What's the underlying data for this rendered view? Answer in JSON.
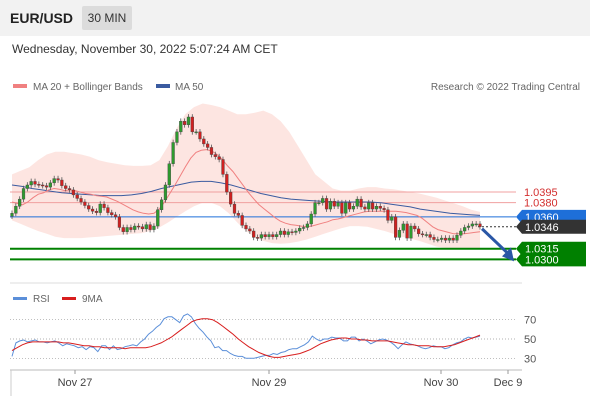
{
  "header": {
    "pair": "EUR/USD",
    "timeframe": "30 MIN"
  },
  "datetime": "Wednesday, November 30, 2022 5:07:24 AM CET",
  "legend": {
    "ma20": "MA 20 + Bollinger Bands",
    "ma50": "MA 50",
    "credit": "Research © 2022 Trading Central"
  },
  "colors": {
    "ma20": "#f08080",
    "ma50": "#3a5ba0",
    "band": "#fde0dc",
    "resistance": "#d32f2f",
    "support": "#008000",
    "current": "#1e6fd9",
    "arrow": "#2a57a6",
    "rsi": "#5b8fd9",
    "rsi_ma": "#d81e1e"
  },
  "chart_data": [
    {
      "type": "candlestick",
      "ylim": [
        1.0268,
        1.0525
      ],
      "x_ticks": [
        "Nov 27",
        "Nov 29",
        "Nov 30",
        "Dec 9"
      ],
      "levels": [
        {
          "value": 1.0395,
          "label": "1.0395",
          "kind": "resistance"
        },
        {
          "value": 1.038,
          "label": "1.0380",
          "kind": "resistance"
        },
        {
          "value": 1.036,
          "label": "1.0360",
          "kind": "current"
        },
        {
          "value": 1.0346,
          "label": "1.0346",
          "kind": "last"
        },
        {
          "value": 1.0315,
          "label": "1.0315",
          "kind": "support"
        },
        {
          "value": 1.03,
          "label": "1.0300",
          "kind": "support"
        }
      ],
      "close": [
        1.0365,
        1.0375,
        1.0385,
        1.04,
        1.0405,
        1.041,
        1.0406,
        1.0405,
        1.0404,
        1.0402,
        1.0408,
        1.0414,
        1.0412,
        1.0404,
        1.04,
        1.0398,
        1.0391,
        1.0386,
        1.0381,
        1.0376,
        1.0371,
        1.0368,
        1.0366,
        1.0378,
        1.0373,
        1.0366,
        1.0363,
        1.036,
        1.0345,
        1.0339,
        1.0345,
        1.0342,
        1.0347,
        1.0346,
        1.0343,
        1.0349,
        1.0342,
        1.0347,
        1.037,
        1.0384,
        1.0405,
        1.0435,
        1.0465,
        1.048,
        1.0495,
        1.049,
        1.0501,
        1.048,
        1.048,
        1.047,
        1.0463,
        1.0458,
        1.0448,
        1.0445,
        1.0441,
        1.042,
        1.0395,
        1.0378,
        1.0365,
        1.0362,
        1.0348,
        1.0343,
        1.034,
        1.0331,
        1.033,
        1.0335,
        1.0332,
        1.0335,
        1.0332,
        1.0335,
        1.034,
        1.0335,
        1.0339,
        1.0338,
        1.034,
        1.0344,
        1.0345,
        1.035,
        1.0364,
        1.038,
        1.038,
        1.0386,
        1.0371,
        1.0382,
        1.0375,
        1.038,
        1.0365,
        1.038,
        1.0371,
        1.0375,
        1.0385,
        1.0374,
        1.0371,
        1.038,
        1.0371,
        1.0375,
        1.0372,
        1.037,
        1.0355,
        1.036,
        1.0331,
        1.0341,
        1.035,
        1.033,
        1.0347,
        1.0343,
        1.0336,
        1.0335,
        1.0335,
        1.0331,
        1.0328,
        1.0328,
        1.033,
        1.0327,
        1.033,
        1.0327,
        1.0334,
        1.034,
        1.0345,
        1.0347,
        1.035,
        1.035,
        1.0346
      ],
      "ma20": [
        1.0381,
        1.0379,
        1.0377,
        1.0381,
        1.0387,
        1.0392,
        1.0394,
        1.0398,
        1.04,
        1.0399,
        1.0397,
        1.0398,
        1.0397,
        1.0395,
        1.0393,
        1.0392,
        1.039,
        1.0389,
        1.0388,
        1.0385,
        1.0382,
        1.0378,
        1.0374,
        1.037,
        1.0367,
        1.0365,
        1.0364,
        1.0365,
        1.0371,
        1.0381,
        1.0393,
        1.0405,
        1.0418,
        1.0431,
        1.0443,
        1.0451,
        1.0454,
        1.0455,
        1.0453,
        1.0448,
        1.0441,
        1.0432,
        1.0424,
        1.0414,
        1.0404,
        1.0394,
        1.0385,
        1.0377,
        1.0371,
        1.0365,
        1.0359,
        1.0354,
        1.0351,
        1.0349,
        1.0348,
        1.0347,
        1.0346,
        1.0347,
        1.0349,
        1.0351,
        1.0353,
        1.0356,
        1.0357,
        1.0359,
        1.0361,
        1.0363,
        1.0365,
        1.0367,
        1.0368,
        1.0368,
        1.0368,
        1.0368,
        1.0368,
        1.0368,
        1.0367,
        1.0366,
        1.0364,
        1.0362,
        1.0358,
        1.0352,
        1.0346,
        1.0342,
        1.034,
        1.0338,
        1.0336,
        1.0336,
        1.0336,
        1.0337,
        1.0338,
        1.0339
      ],
      "ma50": [
        1.0405,
        1.0403,
        1.04,
        1.0398,
        1.0396,
        1.0394,
        1.0393,
        1.0392,
        1.0391,
        1.039,
        1.039,
        1.039,
        1.0391,
        1.0393,
        1.0396,
        1.04,
        1.0403,
        1.0406,
        1.0409,
        1.041,
        1.041,
        1.0408,
        1.0405,
        1.0401,
        1.0397,
        1.0393,
        1.039,
        1.0387,
        1.0385,
        1.0384,
        1.0383,
        1.0382,
        1.0381,
        1.0381,
        1.0381,
        1.0381,
        1.0381,
        1.038,
        1.0378,
        1.0376,
        1.0374,
        1.0371,
        1.0369,
        1.0367,
        1.0365,
        1.0364,
        1.0363,
        1.0362
      ],
      "bb_upper": [
        1.042,
        1.0425,
        1.043,
        1.044,
        1.0448,
        1.0452,
        1.0452,
        1.045,
        1.0448,
        1.0445,
        1.044,
        1.0437,
        1.0435,
        1.0433,
        1.0432,
        1.0432,
        1.0433,
        1.044,
        1.046,
        1.0485,
        1.0505,
        1.0515,
        1.052,
        1.0518,
        1.0515,
        1.051,
        1.0505,
        1.0505,
        1.0507,
        1.051,
        1.0505,
        1.0495,
        1.048,
        1.046,
        1.044,
        1.042,
        1.041,
        1.04,
        1.0397,
        1.0397,
        1.04,
        1.0402,
        1.0402,
        1.04,
        1.0399,
        1.0397,
        1.0395,
        1.0393,
        1.039,
        1.0387,
        1.0383,
        1.0379,
        1.0375,
        1.037,
        1.0367
      ],
      "bb_lower": [
        1.0355,
        1.035,
        1.0345,
        1.034,
        1.0336,
        1.0332,
        1.033,
        1.033,
        1.033,
        1.0331,
        1.0332,
        1.0333,
        1.0334,
        1.0335,
        1.0336,
        1.0337,
        1.034,
        1.0345,
        1.0352,
        1.036,
        1.0368,
        1.0375,
        1.038,
        1.038,
        1.0375,
        1.0365,
        1.0352,
        1.034,
        1.0331,
        1.0326,
        1.0323,
        1.0322,
        1.0323,
        1.0325,
        1.0328,
        1.0332,
        1.0336,
        1.034,
        1.0344,
        1.0347,
        1.0347,
        1.0346,
        1.0343,
        1.034,
        1.0336,
        1.0332,
        1.0329,
        1.0326,
        1.0322,
        1.0318,
        1.0316,
        1.0315,
        1.0314,
        1.0314,
        1.0315
      ]
    },
    {
      "type": "line",
      "legend": [
        "RSI",
        "9MA"
      ],
      "ylim": [
        20,
        80
      ],
      "y_ticks": [
        70,
        50,
        30
      ],
      "series": [
        {
          "name": "RSI",
          "values": [
            32,
            46,
            48,
            49,
            47,
            48,
            49,
            47,
            47,
            46,
            47,
            48,
            46,
            43,
            45,
            44,
            43,
            41,
            42,
            39,
            42,
            41,
            37,
            43,
            43,
            39,
            43,
            39,
            40,
            42,
            43,
            44,
            43,
            47,
            50,
            55,
            58,
            62,
            65,
            71,
            73,
            73,
            70,
            67,
            74,
            76,
            73,
            66,
            61,
            57,
            52,
            48,
            41,
            42,
            38,
            38,
            35,
            33,
            32,
            32,
            30,
            30,
            30,
            31,
            32,
            33,
            33,
            35,
            34,
            36,
            37,
            39,
            40,
            40,
            42,
            44,
            47,
            53,
            50,
            48,
            50,
            50,
            52,
            51,
            51,
            48,
            48,
            52,
            52,
            48,
            50,
            48,
            45,
            47,
            49,
            50,
            49,
            47,
            44,
            40,
            44,
            47,
            45,
            44,
            43,
            41,
            40,
            41,
            43,
            42,
            42,
            40,
            41,
            44,
            46,
            47,
            50,
            52,
            51,
            52,
            53
          ]
        },
        {
          "name": "9MA",
          "values": [
            38,
            41,
            44,
            46,
            47,
            47,
            47,
            47,
            47,
            47,
            46,
            46,
            45,
            44,
            43,
            43,
            42,
            42,
            41,
            41,
            41,
            41,
            40,
            41,
            41,
            41,
            41,
            42,
            44,
            46,
            49,
            52,
            56,
            60,
            64,
            68,
            70,
            71,
            71,
            70,
            67,
            63,
            59,
            55,
            50,
            46,
            42,
            39,
            36,
            34,
            32,
            31,
            31,
            32,
            33,
            34,
            35,
            37,
            39,
            42,
            45,
            47,
            49,
            50,
            51,
            51,
            50,
            50,
            49,
            49,
            48,
            48,
            48,
            48,
            47,
            46,
            45,
            44,
            44,
            43,
            43,
            43,
            42,
            42,
            42,
            43,
            44,
            46,
            48,
            50,
            52,
            54
          ]
        }
      ]
    }
  ]
}
